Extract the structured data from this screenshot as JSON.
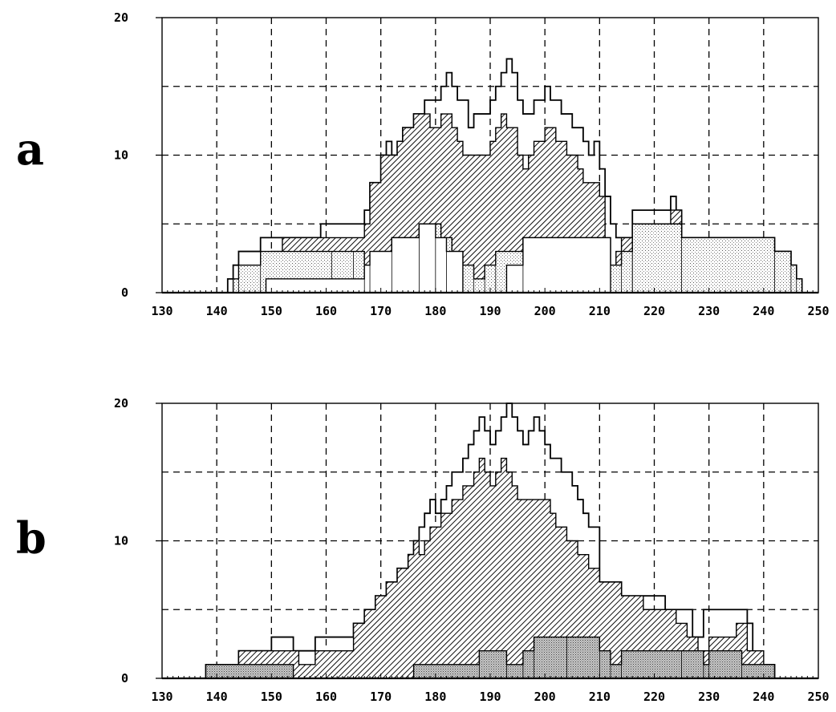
{
  "chart_data": [
    {
      "panel_label": "a",
      "type": "area",
      "step": true,
      "xlim": [
        130,
        250
      ],
      "ylim": [
        0,
        20
      ],
      "x_ticks": [
        "130",
        "140",
        "150",
        "160",
        "170",
        "180",
        "190",
        "200",
        "210",
        "220",
        "230",
        "240",
        "250"
      ],
      "y_ticks": [
        "0",
        "10",
        "20"
      ],
      "grid": true,
      "series": [
        {
          "fill": "none",
          "points": [
            [
              142,
              1
            ],
            [
              143,
              2
            ],
            [
              144,
              3
            ],
            [
              148,
              4
            ],
            [
              159,
              5
            ],
            [
              167,
              6
            ],
            [
              168,
              8
            ],
            [
              170,
              10
            ],
            [
              171,
              11
            ],
            [
              172,
              10
            ],
            [
              173,
              11
            ],
            [
              174,
              12
            ],
            [
              176,
              13
            ],
            [
              178,
              14
            ],
            [
              181,
              15
            ],
            [
              182,
              16
            ],
            [
              183,
              15
            ],
            [
              184,
              14
            ],
            [
              186,
              12
            ],
            [
              187,
              13
            ],
            [
              190,
              14
            ],
            [
              191,
              15
            ],
            [
              192,
              16
            ],
            [
              193,
              17
            ],
            [
              194,
              16
            ],
            [
              195,
              14
            ],
            [
              196,
              13
            ],
            [
              198,
              14
            ],
            [
              200,
              15
            ],
            [
              201,
              14
            ],
            [
              203,
              13
            ],
            [
              205,
              12
            ],
            [
              207,
              11
            ],
            [
              208,
              10
            ],
            [
              209,
              11
            ],
            [
              210,
              9
            ],
            [
              211,
              7
            ],
            [
              212,
              5
            ],
            [
              213,
              4
            ],
            [
              214,
              4
            ],
            [
              216,
              6
            ],
            [
              222,
              6
            ],
            [
              223,
              7
            ],
            [
              224,
              6
            ],
            [
              225,
              4
            ],
            [
              242,
              3
            ],
            [
              245,
              2
            ],
            [
              246,
              1
            ],
            [
              247,
              0
            ]
          ]
        },
        {
          "fill": "diagonal-hatch",
          "points": [
            [
              148,
              1
            ],
            [
              149,
              2
            ],
            [
              150,
              3
            ],
            [
              152,
              4
            ],
            [
              167,
              5
            ],
            [
              168,
              8
            ],
            [
              170,
              10
            ],
            [
              172,
              10
            ],
            [
              173,
              11
            ],
            [
              174,
              12
            ],
            [
              176,
              13
            ],
            [
              179,
              12
            ],
            [
              181,
              13
            ],
            [
              183,
              12
            ],
            [
              184,
              11
            ],
            [
              185,
              10
            ],
            [
              190,
              11
            ],
            [
              191,
              12
            ],
            [
              192,
              13
            ],
            [
              193,
              12
            ],
            [
              195,
              10
            ],
            [
              196,
              9
            ],
            [
              197,
              10
            ],
            [
              198,
              11
            ],
            [
              200,
              12
            ],
            [
              202,
              11
            ],
            [
              204,
              10
            ],
            [
              206,
              9
            ],
            [
              207,
              8
            ],
            [
              210,
              7
            ],
            [
              211,
              4
            ],
            [
              212,
              2
            ],
            [
              213,
              3
            ],
            [
              214,
              4
            ],
            [
              216,
              5
            ],
            [
              222,
              5
            ],
            [
              223,
              6
            ],
            [
              225,
              0
            ]
          ]
        },
        {
          "fill": "dotted",
          "points": [
            [
              142,
              0
            ],
            [
              143,
              1
            ],
            [
              144,
              2
            ],
            [
              148,
              3
            ],
            [
              161,
              3
            ],
            [
              165,
              3
            ],
            [
              167,
              2
            ],
            [
              169,
              3
            ],
            [
              172,
              4
            ],
            [
              177,
              5
            ],
            [
              181,
              4
            ],
            [
              183,
              3
            ],
            [
              185,
              2
            ],
            [
              187,
              1
            ],
            [
              189,
              2
            ],
            [
              191,
              3
            ],
            [
              196,
              4
            ],
            [
              208,
              4
            ],
            [
              210,
              2
            ],
            [
              214,
              3
            ],
            [
              216,
              4
            ],
            [
              216,
              5
            ],
            [
              225,
              4
            ],
            [
              242,
              3
            ],
            [
              245,
              2
            ],
            [
              246,
              1
            ],
            [
              247,
              0
            ]
          ]
        },
        {
          "fill": "white",
          "points": [
            [
              146,
              0
            ],
            [
              149,
              1
            ],
            [
              167,
              2
            ],
            [
              168,
              3
            ],
            [
              172,
              4
            ],
            [
              177,
              5
            ],
            [
              180,
              4
            ],
            [
              182,
              3
            ],
            [
              185,
              0
            ],
            [
              193,
              2
            ],
            [
              196,
              4
            ],
            [
              212,
              0
            ]
          ]
        }
      ]
    },
    {
      "panel_label": "b",
      "type": "area",
      "step": true,
      "xlim": [
        130,
        250
      ],
      "ylim": [
        0,
        20
      ],
      "x_ticks": [
        "130",
        "140",
        "150",
        "160",
        "170",
        "180",
        "190",
        "200",
        "210",
        "220",
        "230",
        "240",
        "250"
      ],
      "y_ticks": [
        "0",
        "10",
        "20"
      ],
      "grid": true,
      "series": [
        {
          "fill": "none",
          "points": [
            [
              138,
              1
            ],
            [
              144,
              2
            ],
            [
              150,
              3
            ],
            [
              154,
              2
            ],
            [
              158,
              3
            ],
            [
              165,
              4
            ],
            [
              167,
              5
            ],
            [
              169,
              6
            ],
            [
              171,
              7
            ],
            [
              173,
              8
            ],
            [
              175,
              9
            ],
            [
              176,
              10
            ],
            [
              177,
              11
            ],
            [
              178,
              12
            ],
            [
              179,
              13
            ],
            [
              180,
              12
            ],
            [
              181,
              13
            ],
            [
              182,
              14
            ],
            [
              183,
              15
            ],
            [
              185,
              16
            ],
            [
              186,
              17
            ],
            [
              187,
              18
            ],
            [
              188,
              19
            ],
            [
              189,
              18
            ],
            [
              190,
              17
            ],
            [
              191,
              18
            ],
            [
              192,
              19
            ],
            [
              193,
              20
            ],
            [
              194,
              19
            ],
            [
              195,
              18
            ],
            [
              196,
              17
            ],
            [
              197,
              18
            ],
            [
              198,
              19
            ],
            [
              199,
              18
            ],
            [
              200,
              17
            ],
            [
              201,
              16
            ],
            [
              203,
              15
            ],
            [
              205,
              14
            ],
            [
              206,
              13
            ],
            [
              207,
              12
            ],
            [
              208,
              11
            ],
            [
              210,
              7
            ],
            [
              214,
              6
            ],
            [
              222,
              5
            ],
            [
              227,
              3
            ],
            [
              229,
              5
            ],
            [
              237,
              4
            ],
            [
              238,
              1
            ],
            [
              240,
              1
            ],
            [
              242,
              0
            ]
          ]
        },
        {
          "fill": "diagonal-hatch",
          "points": [
            [
              138,
              1
            ],
            [
              144,
              2
            ],
            [
              150,
              2
            ],
            [
              155,
              1
            ],
            [
              158,
              2
            ],
            [
              165,
              4
            ],
            [
              167,
              5
            ],
            [
              169,
              6
            ],
            [
              171,
              7
            ],
            [
              173,
              8
            ],
            [
              175,
              9
            ],
            [
              176,
              10
            ],
            [
              177,
              9
            ],
            [
              178,
              10
            ],
            [
              179,
              11
            ],
            [
              181,
              12
            ],
            [
              183,
              13
            ],
            [
              185,
              14
            ],
            [
              187,
              15
            ],
            [
              188,
              16
            ],
            [
              189,
              15
            ],
            [
              190,
              14
            ],
            [
              191,
              15
            ],
            [
              192,
              16
            ],
            [
              193,
              15
            ],
            [
              194,
              14
            ],
            [
              195,
              13
            ],
            [
              198,
              13
            ],
            [
              201,
              12
            ],
            [
              202,
              11
            ],
            [
              204,
              10
            ],
            [
              206,
              9
            ],
            [
              208,
              8
            ],
            [
              210,
              7
            ],
            [
              214,
              6
            ],
            [
              218,
              5
            ],
            [
              224,
              4
            ],
            [
              226,
              3
            ],
            [
              228,
              2
            ],
            [
              230,
              3
            ],
            [
              235,
              4
            ],
            [
              237,
              2
            ],
            [
              240,
              1
            ],
            [
              242,
              0
            ]
          ]
        },
        {
          "fill": "dark-dotted",
          "points": [
            [
              138,
              1
            ],
            [
              154,
              0
            ],
            [
              176,
              1
            ],
            [
              188,
              2
            ],
            [
              193,
              1
            ],
            [
              196,
              2
            ],
            [
              198,
              3
            ],
            [
              204,
              3
            ],
            [
              210,
              2
            ],
            [
              212,
              1
            ],
            [
              214,
              2
            ],
            [
              225,
              2
            ],
            [
              229,
              1
            ],
            [
              230,
              2
            ],
            [
              236,
              1
            ],
            [
              242,
              0
            ]
          ]
        }
      ]
    }
  ],
  "colors": {
    "ink": "#000000",
    "background": "#ffffff"
  }
}
